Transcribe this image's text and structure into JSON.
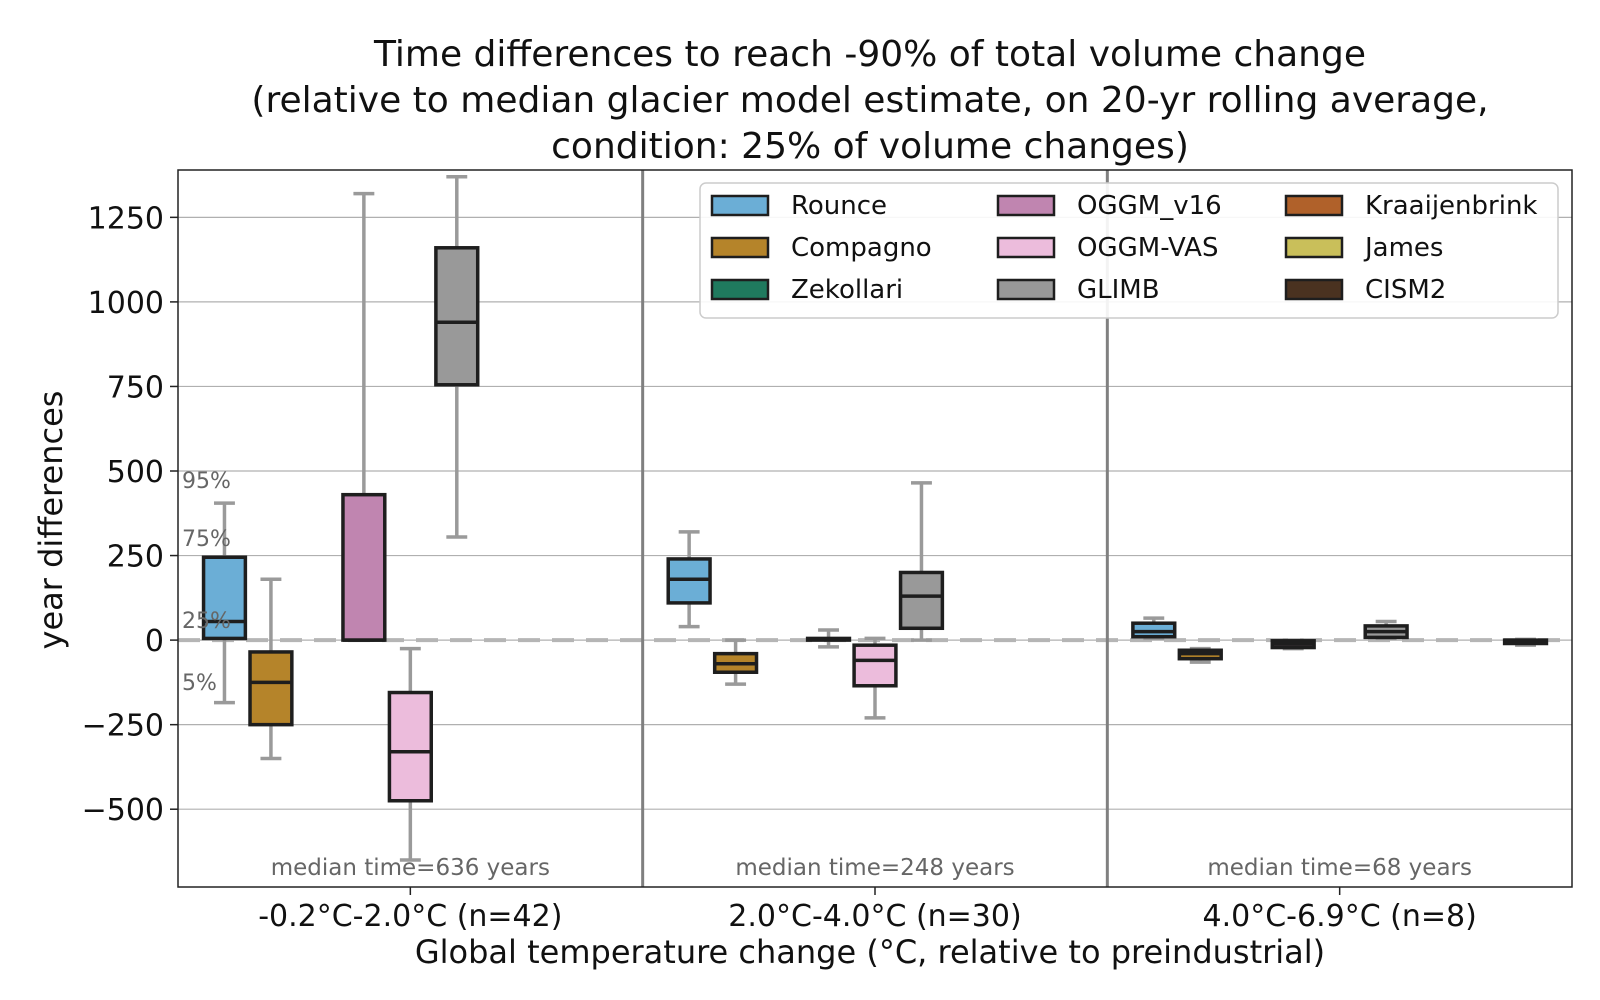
{
  "chart_data": {
    "type": "box",
    "title_lines": [
      "Time differences to reach -90% of total volume change",
      "(relative to median glacier model estimate, on 20-yr rolling average,",
      "condition: 25% of volume changes)"
    ],
    "xlabel": "Global temperature change (°C, relative to preindustrial)",
    "ylabel": "year differences",
    "ylim": [
      -730,
      1390
    ],
    "yticks": [
      -500,
      -250,
      0,
      250,
      500,
      750,
      1000,
      1250
    ],
    "ytick_labels": [
      "−500",
      "−250",
      "0",
      "250",
      "500",
      "750",
      "1000",
      "1250"
    ],
    "grid": "horizontal",
    "reference_line": 0,
    "legend_position": "top-right",
    "percentile_labels": [
      "95%",
      "75%",
      "25%",
      "5%"
    ],
    "categories": [
      "-0.2°C-2.0°C (n=42)",
      "2.0°C-4.0°C (n=30)",
      "4.0°C-6.9°C (n=8)"
    ],
    "median_notes": [
      "median time=636 years",
      "median time=248 years",
      "median time=68 years"
    ],
    "series": [
      {
        "name": "Rounce",
        "color": "#6baed6",
        "boxes": [
          {
            "whislo": -185,
            "q1": 5,
            "med": 55,
            "q3": 245,
            "whishi": 405
          },
          {
            "whislo": 40,
            "q1": 110,
            "med": 180,
            "q3": 240,
            "whishi": 320
          },
          {
            "whislo": 5,
            "q1": 10,
            "med": 25,
            "q3": 50,
            "whishi": 65
          }
        ]
      },
      {
        "name": "Compagno",
        "color": "#b5842a",
        "boxes": [
          {
            "whislo": -350,
            "q1": -250,
            "med": -125,
            "q3": -35,
            "whishi": 180
          },
          {
            "whislo": -130,
            "q1": -95,
            "med": -70,
            "q3": -40,
            "whishi": 0
          },
          {
            "whislo": -65,
            "q1": -55,
            "med": -40,
            "q3": -30,
            "whishi": -25
          }
        ]
      },
      {
        "name": "Zekollari",
        "color": "#1f7a5e",
        "boxes": [
          null,
          null,
          null
        ]
      },
      {
        "name": "OGGM_v16",
        "color": "#c085b0",
        "boxes": [
          {
            "whislo": 0,
            "q1": 0,
            "med": 0,
            "q3": 430,
            "whishi": 1320
          },
          {
            "whislo": -20,
            "q1": 0,
            "med": 2,
            "q3": 5,
            "whishi": 30
          },
          {
            "whislo": -25,
            "q1": -22,
            "med": -12,
            "q3": -2,
            "whishi": 0
          }
        ]
      },
      {
        "name": "OGGM-VAS",
        "color": "#ecbcdc",
        "boxes": [
          {
            "whislo": -650,
            "q1": -475,
            "med": -330,
            "q3": -155,
            "whishi": -25
          },
          {
            "whislo": -230,
            "q1": -135,
            "med": -60,
            "q3": -15,
            "whishi": 5
          },
          null
        ]
      },
      {
        "name": "GLIMB",
        "color": "#999999",
        "boxes": [
          {
            "whislo": 305,
            "q1": 755,
            "med": 940,
            "q3": 1160,
            "whishi": 1370
          },
          {
            "whislo": 0,
            "q1": 35,
            "med": 130,
            "q3": 200,
            "whishi": 465
          },
          {
            "whislo": 5,
            "q1": 8,
            "med": 25,
            "q3": 42,
            "whishi": 55
          }
        ]
      },
      {
        "name": "Kraaijenbrink",
        "color": "#b0612a",
        "boxes": [
          null,
          null,
          null
        ]
      },
      {
        "name": "James",
        "color": "#c9bf5a",
        "boxes": [
          null,
          null,
          null
        ]
      },
      {
        "name": "CISM2",
        "color": "#4a3220",
        "boxes": [
          null,
          null,
          {
            "whislo": -15,
            "q1": -10,
            "med": -5,
            "q3": 0,
            "whishi": 2
          }
        ]
      }
    ]
  }
}
